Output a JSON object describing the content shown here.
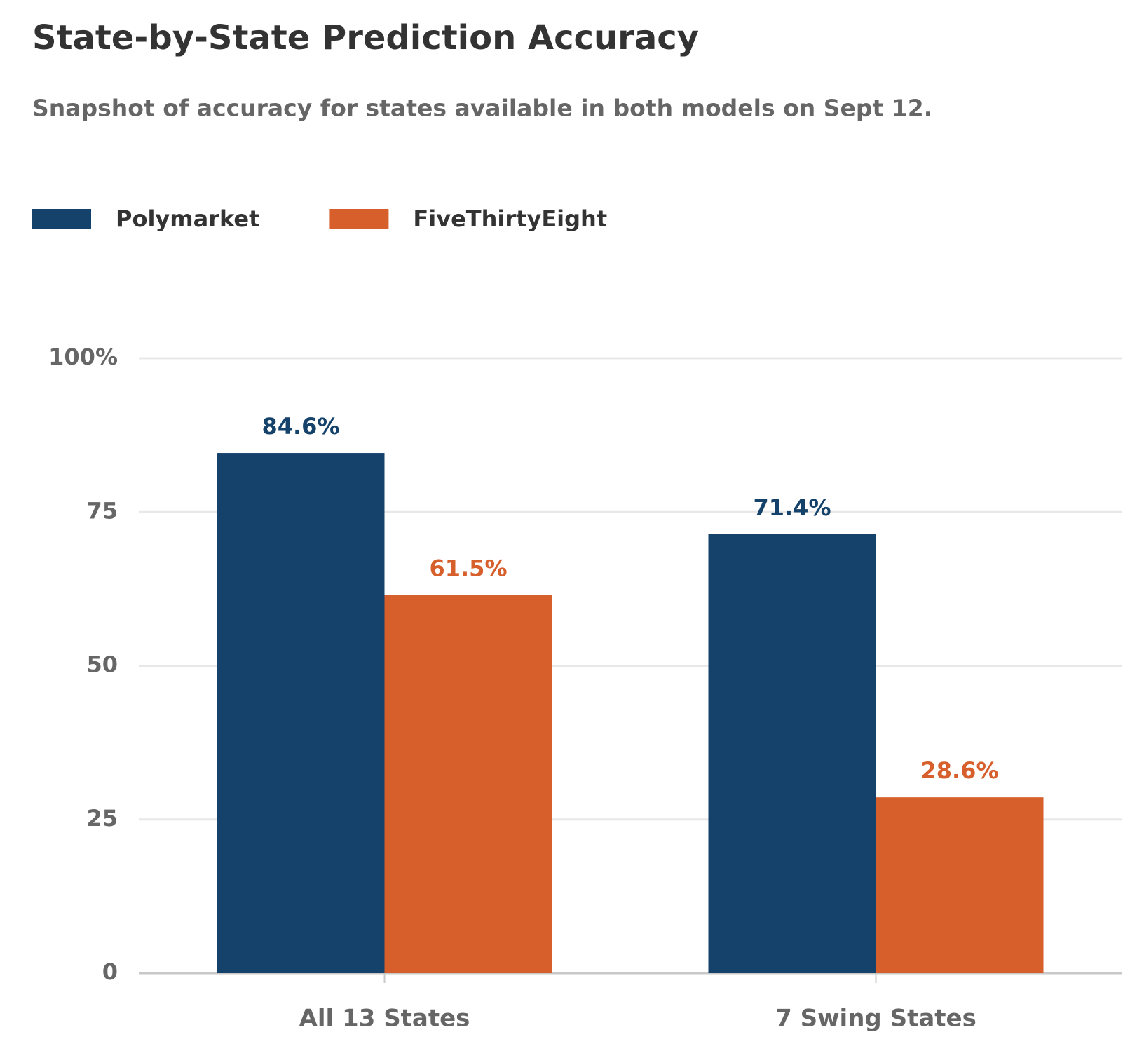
{
  "chart_data": {
    "type": "bar",
    "title": "State-by-State Prediction Accuracy",
    "subtitle": "Snapshot of accuracy for states available in both models on Sept 12.",
    "categories": [
      "All 13 States",
      "7 Swing States"
    ],
    "series": [
      {
        "name": "Polymarket",
        "color": "#15426b",
        "values": [
          84.6,
          71.4
        ],
        "value_labels": [
          "84.6%",
          "71.4%"
        ]
      },
      {
        "name": "FiveThirtyEight",
        "color": "#d75f2b",
        "values": [
          61.5,
          28.6
        ],
        "value_labels": [
          "61.5%",
          "28.6%"
        ]
      }
    ],
    "ylim": [
      0,
      100
    ],
    "yticks": [
      0,
      25,
      50,
      75,
      {
        "value": 100,
        "label": "100%"
      }
    ],
    "grid": true,
    "legend": "top-left"
  }
}
